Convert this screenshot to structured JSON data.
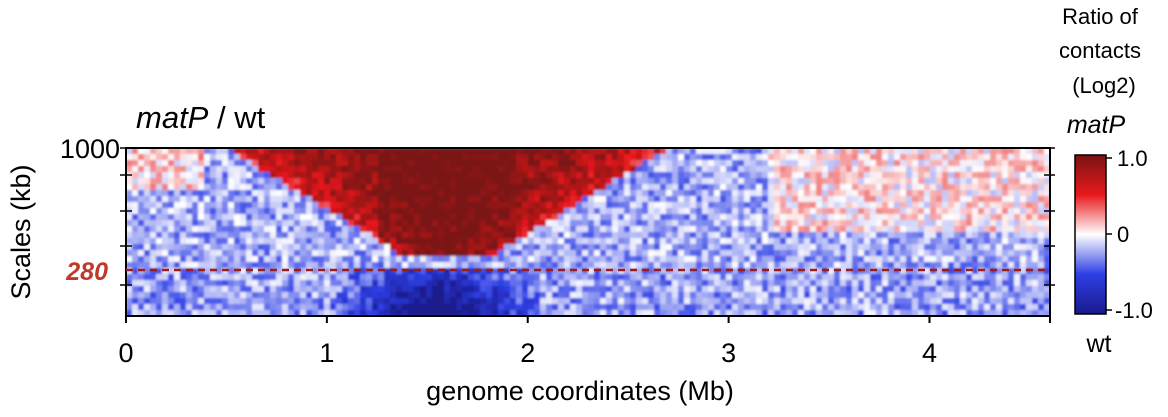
{
  "chart_data": {
    "type": "heatmap",
    "title_italic": "matP",
    "title_rest": " / wt",
    "xlabel": "genome coordinates (Mb)",
    "ylabel": "Scales (kb)",
    "xlim": [
      0,
      4.6
    ],
    "x_ticks": [
      0,
      1,
      2,
      3,
      4
    ],
    "x_tick_labels": [
      "0",
      "1",
      "2",
      "3",
      "4"
    ],
    "y_top_label": "1000",
    "reference_line": {
      "value_kb": 280,
      "label": "280",
      "color": "#c0392b",
      "style": "dashed"
    },
    "colorbar": {
      "title_lines": [
        "Ratio of",
        "contacts",
        "(Log2)"
      ],
      "top_label": "matP",
      "bottom_label": "wt",
      "range": [
        -1.0,
        1.0
      ],
      "tick_labels": [
        "1.0",
        "0",
        "-1.0"
      ],
      "colors": [
        "#1a1a8c",
        "#2e3fe6",
        "#ffffff",
        "#e8191c",
        "#7a1212"
      ]
    },
    "pattern": {
      "red_zone_apex_mb": 1.6,
      "red_zone_left_mb_at_top": 0.5,
      "red_zone_right_mb_at_top": 2.7,
      "blue_core_center_mb": 1.55,
      "max_ratio": 1.0,
      "min_ratio": -1.0
    }
  }
}
